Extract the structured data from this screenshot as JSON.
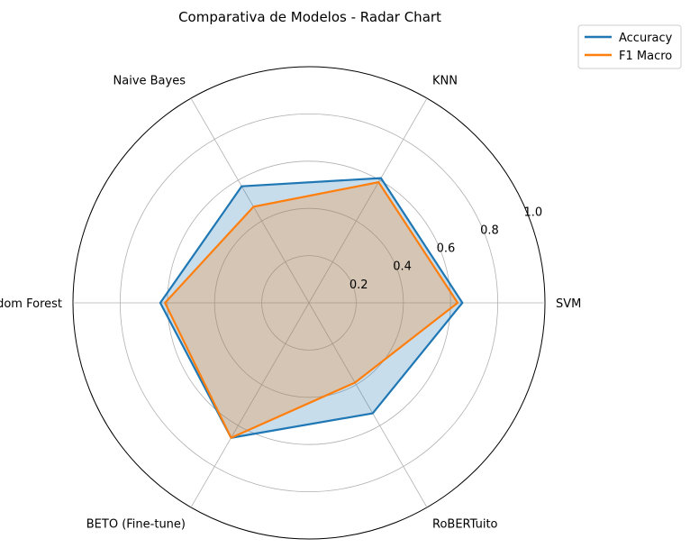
{
  "chart_data": {
    "type": "radar",
    "title": "Comparativa de Modelos - Radar Chart",
    "categories": [
      "SVM",
      "KNN",
      "Naive Bayes",
      "Random Forest",
      "BETO (Fine-tune)",
      "RoBERTuito"
    ],
    "r_ticks": [
      0.2,
      0.4,
      0.6,
      0.8,
      1.0
    ],
    "r_tick_labels": [
      "0.2",
      "0.4",
      "0.6",
      "0.8",
      "1.0"
    ],
    "rlim": [
      0,
      1.0
    ],
    "grid": true,
    "legend_position": "top-right",
    "series": [
      {
        "name": "Accuracy",
        "values": [
          0.65,
          0.61,
          0.57,
          0.63,
          0.66,
          0.54
        ],
        "color": "#1f77b4",
        "fill": true
      },
      {
        "name": "F1 Macro",
        "values": [
          0.63,
          0.59,
          0.47,
          0.61,
          0.66,
          0.39
        ],
        "color": "#ff7f0e",
        "fill": true
      }
    ]
  }
}
